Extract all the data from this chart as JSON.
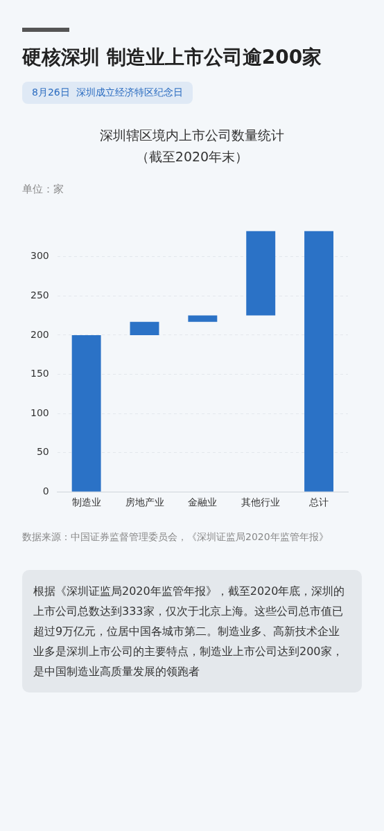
{
  "chart_data": {
    "type": "bar",
    "title": "硬核深圳 制造业上市公司逾200家",
    "subtitle": "深圳辖区境内上市公司数量统计（截至2020年末）",
    "categories": [
      "制造业",
      "房地产业",
      "金融业",
      "其他行业",
      "总计"
    ],
    "values": [
      200,
      17,
      8,
      108,
      333
    ],
    "base": [
      0,
      200,
      217,
      225,
      0
    ],
    "color": "#2b72c6",
    "ylim": [
      0,
      333
    ],
    "yticks": [
      0,
      50,
      100,
      150,
      200,
      250,
      300
    ],
    "grid": "y",
    "annotations": [
      "8月26日  深圳成立经济特区纪念日",
      "单位：家",
      "数据来源：中国证券监督管理委员会，《深圳证监局2020年监管年报》",
      "根据《深圳证监局2020年监管年报》，截至2020年底，深圳的上市公司总数达到333家，仅次于北京上海。这些公司总市值已超过9万亿元，位居中国各城市第二。制造业多、高新技术企业业多是深圳上市公司的主要特点，制造业上市公司达到200家，是中国制造业高质量发展的领跑者"
    ]
  }
}
